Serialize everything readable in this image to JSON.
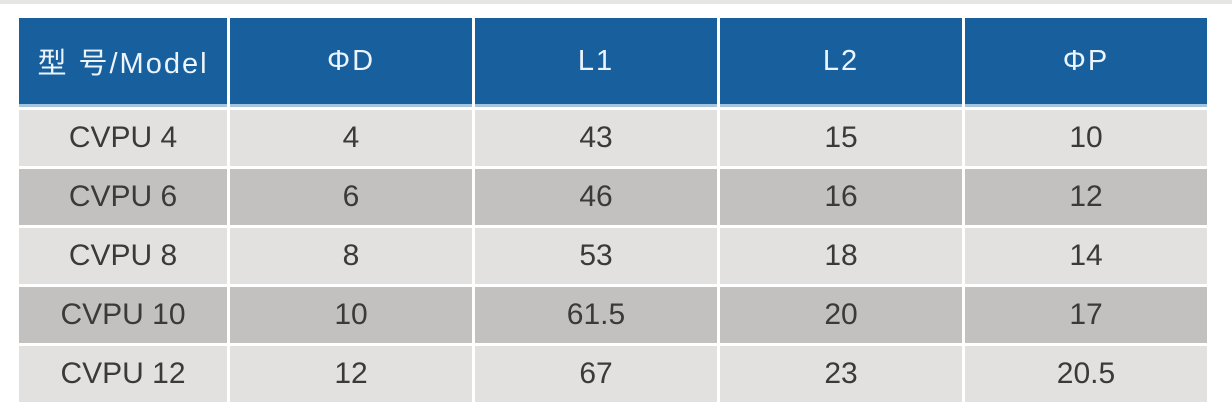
{
  "colors": {
    "header_bg": "#175f9d",
    "header_text": "#edf4fb",
    "header_underline": "#a6c3dd",
    "row_light": "#e2e1df",
    "row_dark": "#c2c1bf",
    "cell_text": "#3a3a38",
    "page_bg": "#ffffff",
    "top_strip": "#e6e6e4",
    "separator": "#ffffff"
  },
  "table": {
    "columns": [
      {
        "label": "型 号/Model"
      },
      {
        "label": "ΦD"
      },
      {
        "label": "L1"
      },
      {
        "label": "L2"
      },
      {
        "label": "ΦP"
      }
    ],
    "rows": [
      {
        "cells": [
          "CVPU 4",
          "4",
          "43",
          "15",
          "10"
        ]
      },
      {
        "cells": [
          "CVPU 6",
          "6",
          "46",
          "16",
          "12"
        ]
      },
      {
        "cells": [
          "CVPU 8",
          "8",
          "53",
          "18",
          "14"
        ]
      },
      {
        "cells": [
          "CVPU 10",
          "10",
          "61.5",
          "20",
          "17"
        ]
      },
      {
        "cells": [
          "CVPU 12",
          "12",
          "67",
          "23",
          "20.5"
        ]
      }
    ]
  }
}
